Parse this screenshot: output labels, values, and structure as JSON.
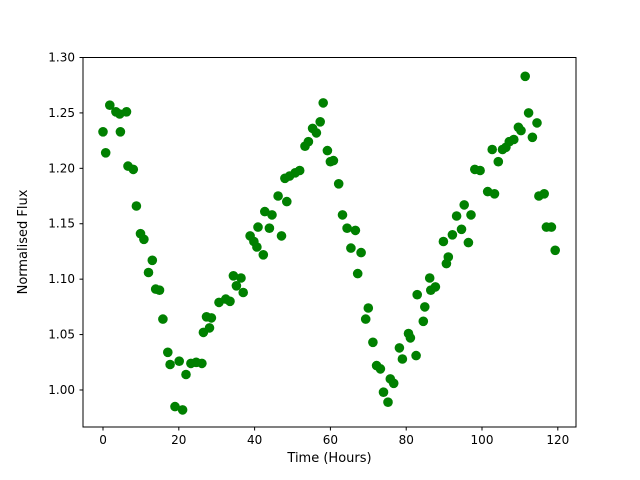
{
  "chart_data": {
    "type": "scatter",
    "title": "",
    "xlabel": "Time (Hours)",
    "ylabel": "Normalised Flux",
    "xlim": [
      -5.28,
      124.8
    ],
    "ylim": [
      0.9666,
      1.3
    ],
    "grid": false,
    "legend_position": "none",
    "xticks": {
      "values": [
        0,
        20,
        40,
        60,
        80,
        100,
        120
      ],
      "labels": [
        "0",
        "20",
        "40",
        "60",
        "80",
        "100",
        "120"
      ]
    },
    "yticks": {
      "values": [
        1.0,
        1.05,
        1.1,
        1.15,
        1.2,
        1.25,
        1.3
      ],
      "labels": [
        "1.00",
        "1.05",
        "1.10",
        "1.15",
        "1.20",
        "1.25",
        "1.30"
      ]
    },
    "marker": {
      "shape": "circle",
      "color": "#008000",
      "radius_px": 4.8
    },
    "series": [
      {
        "name": "normalised-flux",
        "points": [
          [
            0.0,
            1.233
          ],
          [
            0.7,
            1.214
          ],
          [
            1.8,
            1.257
          ],
          [
            3.4,
            1.251
          ],
          [
            4.4,
            1.249
          ],
          [
            4.6,
            1.233
          ],
          [
            6.2,
            1.251
          ],
          [
            6.6,
            1.202
          ],
          [
            8.0,
            1.199
          ],
          [
            8.8,
            1.166
          ],
          [
            9.9,
            1.141
          ],
          [
            10.8,
            1.136
          ],
          [
            12.0,
            1.106
          ],
          [
            13.0,
            1.117
          ],
          [
            13.9,
            1.091
          ],
          [
            14.9,
            1.09
          ],
          [
            15.8,
            1.064
          ],
          [
            17.1,
            1.034
          ],
          [
            17.7,
            1.023
          ],
          [
            19.0,
            0.985
          ],
          [
            20.1,
            1.026
          ],
          [
            21.0,
            0.982
          ],
          [
            21.9,
            1.014
          ],
          [
            23.2,
            1.024
          ],
          [
            24.6,
            1.025
          ],
          [
            26.1,
            1.024
          ],
          [
            26.5,
            1.052
          ],
          [
            27.3,
            1.066
          ],
          [
            28.1,
            1.056
          ],
          [
            28.6,
            1.065
          ],
          [
            30.6,
            1.079
          ],
          [
            32.4,
            1.082
          ],
          [
            33.5,
            1.08
          ],
          [
            34.4,
            1.103
          ],
          [
            35.2,
            1.094
          ],
          [
            36.4,
            1.101
          ],
          [
            37.0,
            1.088
          ],
          [
            38.8,
            1.139
          ],
          [
            39.8,
            1.134
          ],
          [
            40.6,
            1.129
          ],
          [
            40.9,
            1.147
          ],
          [
            42.3,
            1.122
          ],
          [
            42.7,
            1.161
          ],
          [
            43.9,
            1.146
          ],
          [
            44.6,
            1.158
          ],
          [
            46.2,
            1.175
          ],
          [
            47.1,
            1.139
          ],
          [
            48.0,
            1.191
          ],
          [
            48.5,
            1.17
          ],
          [
            49.2,
            1.193
          ],
          [
            50.7,
            1.196
          ],
          [
            51.9,
            1.198
          ],
          [
            53.3,
            1.22
          ],
          [
            54.2,
            1.224
          ],
          [
            55.3,
            1.236
          ],
          [
            56.3,
            1.232
          ],
          [
            57.3,
            1.242
          ],
          [
            58.1,
            1.259
          ],
          [
            59.2,
            1.216
          ],
          [
            60.0,
            1.206
          ],
          [
            60.8,
            1.207
          ],
          [
            62.2,
            1.186
          ],
          [
            63.2,
            1.158
          ],
          [
            64.4,
            1.146
          ],
          [
            65.4,
            1.128
          ],
          [
            66.6,
            1.144
          ],
          [
            67.2,
            1.105
          ],
          [
            68.1,
            1.124
          ],
          [
            69.3,
            1.064
          ],
          [
            70.0,
            1.074
          ],
          [
            71.2,
            1.043
          ],
          [
            72.2,
            1.022
          ],
          [
            73.2,
            1.019
          ],
          [
            74.0,
            0.998
          ],
          [
            75.2,
            0.989
          ],
          [
            75.8,
            1.01
          ],
          [
            76.7,
            1.006
          ],
          [
            78.2,
            1.038
          ],
          [
            79.0,
            1.028
          ],
          [
            80.6,
            1.051
          ],
          [
            81.1,
            1.047
          ],
          [
            82.6,
            1.031
          ],
          [
            82.9,
            1.086
          ],
          [
            84.5,
            1.062
          ],
          [
            84.9,
            1.075
          ],
          [
            86.2,
            1.101
          ],
          [
            86.5,
            1.09
          ],
          [
            87.7,
            1.093
          ],
          [
            89.8,
            1.134
          ],
          [
            90.6,
            1.114
          ],
          [
            91.1,
            1.12
          ],
          [
            92.2,
            1.14
          ],
          [
            93.3,
            1.157
          ],
          [
            94.6,
            1.145
          ],
          [
            95.3,
            1.167
          ],
          [
            96.4,
            1.133
          ],
          [
            97.1,
            1.158
          ],
          [
            98.1,
            1.199
          ],
          [
            99.5,
            1.198
          ],
          [
            101.5,
            1.179
          ],
          [
            102.7,
            1.217
          ],
          [
            103.3,
            1.177
          ],
          [
            104.3,
            1.206
          ],
          [
            105.4,
            1.217
          ],
          [
            106.3,
            1.219
          ],
          [
            107.2,
            1.224
          ],
          [
            108.4,
            1.226
          ],
          [
            109.6,
            1.237
          ],
          [
            110.3,
            1.234
          ],
          [
            111.4,
            1.283
          ],
          [
            112.3,
            1.25
          ],
          [
            113.3,
            1.228
          ],
          [
            114.5,
            1.241
          ],
          [
            115.0,
            1.175
          ],
          [
            116.4,
            1.177
          ],
          [
            117.0,
            1.147
          ],
          [
            118.3,
            1.147
          ],
          [
            119.3,
            1.126
          ]
        ]
      }
    ]
  }
}
